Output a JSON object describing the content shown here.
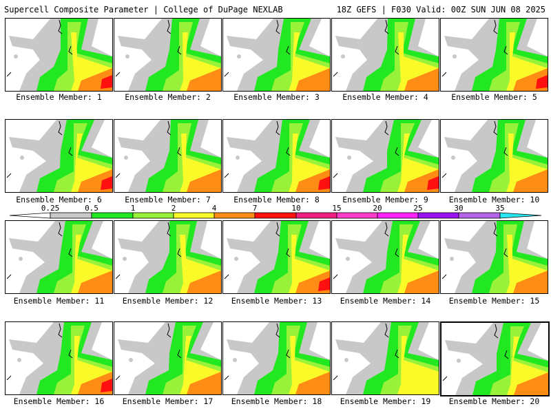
{
  "header": {
    "left": "Supercell Composite Parameter | College of DuPage NEXLAB",
    "right": "18Z GEFS | F030 Valid: 00Z SUN JUN 08 2025"
  },
  "legend": {
    "ticks": [
      "0.25",
      "0.5",
      "1",
      "2",
      "4",
      "7",
      "10",
      "15",
      "20",
      "25",
      "30",
      "35"
    ],
    "colors": [
      "#c8c8c8",
      "#22e822",
      "#99f23a",
      "#fafa28",
      "#ff8c14",
      "#ff1010",
      "#f01e80",
      "#ff3cc8",
      "#ff22ff",
      "#9a14f0",
      "#b464e6",
      "#28e6f0"
    ]
  },
  "panels": [
    {
      "label": "Ensemble Member: 1",
      "intensity": 3
    },
    {
      "label": "Ensemble Member: 2",
      "intensity": 2
    },
    {
      "label": "Ensemble Member: 3",
      "intensity": 2
    },
    {
      "label": "Ensemble Member: 4",
      "intensity": 2
    },
    {
      "label": "Ensemble Member: 5",
      "intensity": 3
    },
    {
      "label": "Ensemble Member: 6",
      "intensity": 3
    },
    {
      "label": "Ensemble Member: 7",
      "intensity": 2
    },
    {
      "label": "Ensemble Member: 8",
      "intensity": 3
    },
    {
      "label": "Ensemble Member: 9",
      "intensity": 3
    },
    {
      "label": "Ensemble Member: 10",
      "intensity": 2
    },
    {
      "label": "Ensemble Member: 11",
      "intensity": 2
    },
    {
      "label": "Ensemble Member: 12",
      "intensity": 2
    },
    {
      "label": "Ensemble Member: 13",
      "intensity": 3
    },
    {
      "label": "Ensemble Member: 14",
      "intensity": 2
    },
    {
      "label": "Ensemble Member: 15",
      "intensity": 2
    },
    {
      "label": "Ensemble Member: 16",
      "intensity": 3
    },
    {
      "label": "Ensemble Member: 17",
      "intensity": 2
    },
    {
      "label": "Ensemble Member: 18",
      "intensity": 2
    },
    {
      "label": "Ensemble Member: 19",
      "intensity": 1
    },
    {
      "label": "Ensemble Member: 20",
      "intensity": 2,
      "highlight": true
    }
  ]
}
